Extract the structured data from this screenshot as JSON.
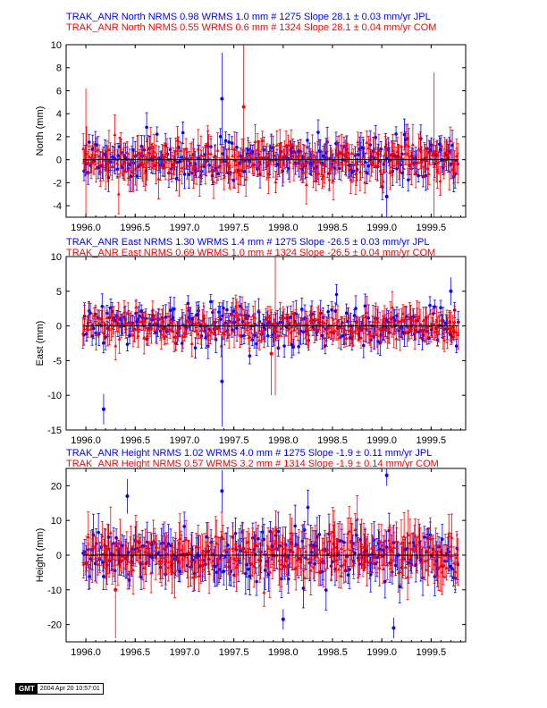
{
  "colors": {
    "jpl": "#0000ff",
    "com": "#ff0000",
    "axis": "#000000"
  },
  "chart_data": [
    {
      "type": "scatter",
      "titles": [
        {
          "text": "TRAK_ANR North NRMS 0.98 WRMS  1.0 mm # 1275 Slope   28.1 ±  0.03 mm/yr JPL",
          "color": "#0000ff"
        },
        {
          "text": "TRAK_ANR North NRMS 0.55 WRMS  0.6 mm # 1324 Slope   28.1 ±  0.04 mm/yr COM",
          "color": "#ff0000"
        }
      ],
      "ylabel": "North (mm)",
      "xlabel": "",
      "xlim": [
        1995.8,
        1999.85
      ],
      "ylim": [
        -5,
        10
      ],
      "xticks": [
        "1996.0",
        "1996.5",
        "1997.0",
        "1997.5",
        "1998.0",
        "1998.5",
        "1999.0",
        "1999.5"
      ],
      "yticks": [
        "-4",
        "-2",
        "0",
        "2",
        "4",
        "6",
        "8",
        "10"
      ],
      "series": [
        {
          "name": "JPL",
          "color": "#0000ff",
          "marker": "circle",
          "count": 1275,
          "nrms": 0.98,
          "wrms_mm": 1.0,
          "slope_mm_yr": 28.1,
          "slope_sigma": 0.03,
          "scatter_sigma_mm": 1.0,
          "error_bar_mm": 0.9
        },
        {
          "name": "COM",
          "color": "#ff0000",
          "marker": "triangle",
          "count": 1324,
          "nrms": 0.55,
          "wrms_mm": 0.6,
          "slope_mm_yr": 28.1,
          "slope_sigma": 0.04,
          "scatter_sigma_mm": 0.9,
          "error_bar_mm": 1.2
        }
      ],
      "outliers": [
        {
          "x": 1996.0,
          "y": 0.5,
          "err": 5.7,
          "series": "COM"
        },
        {
          "x": 1997.38,
          "y": 5.3,
          "err": 4.0,
          "series": "JPL"
        },
        {
          "x": 1997.6,
          "y": 4.6,
          "err": 5.4,
          "series": "COM"
        },
        {
          "x": 1999.05,
          "y": -3.2,
          "err": 2.0,
          "series": "JPL"
        },
        {
          "x": 1999.53,
          "y": 0.6,
          "err": 7.0,
          "series": "COM"
        }
      ]
    },
    {
      "type": "scatter",
      "titles": [
        {
          "text": "TRAK_ANR East NRMS 1.30 WRMS  1.4 mm # 1275 Slope  -26.5 ±  0.03 mm/yr JPL",
          "color": "#0000ff"
        },
        {
          "text": "TRAK_ANR East NRMS 0.69 WRMS  1.0 mm # 1324 Slope  -26.5 ±  0.04 mm/yr COM",
          "color": "#ff0000"
        }
      ],
      "ylabel": "East (mm)",
      "xlabel": "",
      "xlim": [
        1995.8,
        1999.85
      ],
      "ylim": [
        -15,
        10
      ],
      "xticks": [
        "1996.0",
        "1996.5",
        "1997.0",
        "1997.5",
        "1998.0",
        "1998.5",
        "1999.0",
        "1999.5"
      ],
      "yticks": [
        "-15",
        "-10",
        "-5",
        "0",
        "5",
        "10"
      ],
      "series": [
        {
          "name": "JPL",
          "color": "#0000ff",
          "marker": "circle",
          "count": 1275,
          "nrms": 1.3,
          "wrms_mm": 1.4,
          "slope_mm_yr": -26.5,
          "slope_sigma": 0.03,
          "scatter_sigma_mm": 1.6,
          "error_bar_mm": 1.3
        },
        {
          "name": "COM",
          "color": "#ff0000",
          "marker": "triangle",
          "count": 1324,
          "nrms": 0.69,
          "wrms_mm": 1.0,
          "slope_mm_yr": -26.5,
          "slope_sigma": 0.04,
          "scatter_sigma_mm": 1.2,
          "error_bar_mm": 1.6
        }
      ],
      "outliers": [
        {
          "x": 1996.18,
          "y": -12.0,
          "err": 2.2,
          "series": "JPL"
        },
        {
          "x": 1997.38,
          "y": -8.0,
          "err": 6.5,
          "series": "JPL"
        },
        {
          "x": 1997.88,
          "y": -4.0,
          "err": 6.0,
          "series": "COM"
        },
        {
          "x": 1997.92,
          "y": 0.0,
          "err": 10.0,
          "series": "COM"
        },
        {
          "x": 1999.7,
          "y": 5.0,
          "err": 2.0,
          "series": "JPL"
        }
      ]
    },
    {
      "type": "scatter",
      "titles": [
        {
          "text": "TRAK_ANR Height NRMS 1.02 WRMS  4.0 mm # 1275 Slope   -1.9 ±  0.11 mm/yr JPL",
          "color": "#0000ff"
        },
        {
          "text": "TRAK_ANR Height NRMS 0.57 WRMS  3.2 mm # 1314 Slope   -1.9 ±  0.14 mm/yr COM",
          "color": "#ff0000"
        }
      ],
      "ylabel": "Height (mm)",
      "xlabel": "",
      "xlim": [
        1995.8,
        1999.85
      ],
      "ylim": [
        -25,
        25
      ],
      "xticks": [
        "1996.0",
        "1996.5",
        "1997.0",
        "1997.5",
        "1998.0",
        "1998.5",
        "1999.0",
        "1999.5"
      ],
      "yticks": [
        "-20",
        "-10",
        "0",
        "10",
        "20"
      ],
      "series": [
        {
          "name": "JPL",
          "color": "#0000ff",
          "marker": "circle",
          "count": 1275,
          "nrms": 1.02,
          "wrms_mm": 4.0,
          "slope_mm_yr": -1.9,
          "slope_sigma": 0.11,
          "scatter_sigma_mm": 4.0,
          "error_bar_mm": 4.0
        },
        {
          "name": "COM",
          "color": "#ff0000",
          "marker": "triangle",
          "count": 1314,
          "nrms": 0.57,
          "wrms_mm": 3.2,
          "slope_mm_yr": -1.9,
          "slope_sigma": 0.14,
          "scatter_sigma_mm": 3.5,
          "error_bar_mm": 5.0
        }
      ],
      "outliers": [
        {
          "x": 1996.3,
          "y": -10.0,
          "err": 14.0,
          "series": "COM"
        },
        {
          "x": 1996.42,
          "y": 17.0,
          "err": 5.0,
          "series": "JPL"
        },
        {
          "x": 1997.38,
          "y": 18.5,
          "err": 6.0,
          "series": "JPL"
        },
        {
          "x": 1998.0,
          "y": -18.5,
          "err": 3.0,
          "series": "JPL"
        },
        {
          "x": 1999.05,
          "y": 23.0,
          "err": 3.0,
          "series": "JPL"
        },
        {
          "x": 1999.12,
          "y": -21.0,
          "err": 3.0,
          "series": "JPL"
        }
      ]
    }
  ],
  "footer": {
    "logo": "GMT",
    "timestamp": "2004 Apr 20 10:57:01"
  }
}
